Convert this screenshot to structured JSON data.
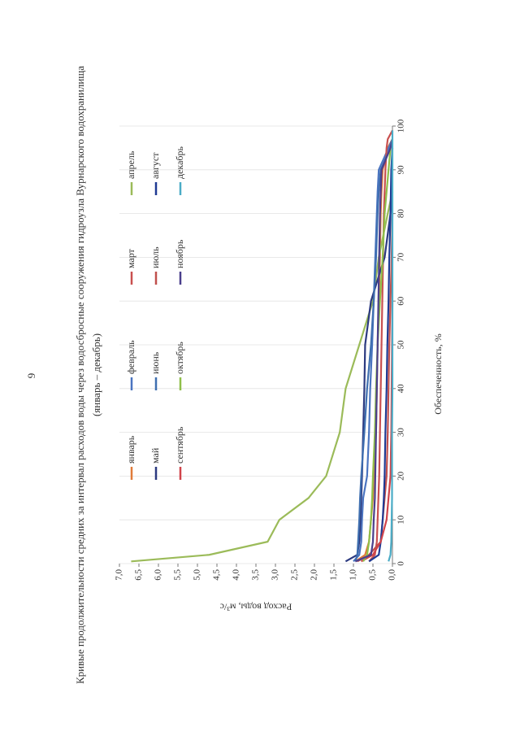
{
  "page_number": "9",
  "chart_data": {
    "type": "line",
    "title": "Кривые продолжительности средних за интервал расходов воды через водосбросные сооружения гидроузла Вурнарского водохранилища",
    "subtitle": "(январь – декабрь)",
    "x_label": "Обеспеченность, %",
    "y_label": "Расход воды, м³/с",
    "x": [
      0.5,
      2,
      5,
      10,
      15,
      20,
      30,
      40,
      50,
      60,
      70,
      80,
      85,
      90,
      95,
      97,
      99
    ],
    "xlim": [
      0,
      100
    ],
    "xticks": [
      0,
      10,
      20,
      30,
      40,
      50,
      60,
      70,
      80,
      90,
      100
    ],
    "ylim": [
      0,
      7
    ],
    "yticks": [
      {
        "value": 0,
        "label": "0,0"
      },
      {
        "value": 0.5,
        "label": "0,5"
      },
      {
        "value": 1,
        "label": "1,0"
      },
      {
        "value": 1.5,
        "label": "1,5"
      },
      {
        "value": 2,
        "label": "2,0"
      },
      {
        "value": 2.5,
        "label": "2,5"
      },
      {
        "value": 3,
        "label": "3,0"
      },
      {
        "value": 3.5,
        "label": "3,5"
      },
      {
        "value": 4,
        "label": "4,0"
      },
      {
        "value": 4.5,
        "label": "4,5"
      },
      {
        "value": 5,
        "label": "5,0"
      },
      {
        "value": 5.5,
        "label": "5,5"
      },
      {
        "value": 6,
        "label": "6,0"
      },
      {
        "value": 6.5,
        "label": "6,5"
      },
      {
        "value": 7,
        "label": "7,0"
      }
    ],
    "grid": true,
    "series": [
      {
        "name": "январь",
        "color": "#e07b39",
        "values": [
          0.95,
          0.7,
          0.6,
          0.55,
          0.5,
          0.48,
          0.42,
          0.4,
          0.38,
          0.35,
          0.32,
          0.3,
          0.28,
          0.25,
          0.12,
          0,
          null
        ]
      },
      {
        "name": "февраль",
        "color": "#4a74c0",
        "values": [
          1.0,
          0.85,
          0.8,
          0.78,
          0.75,
          0.65,
          0.6,
          0.57,
          0.52,
          0.48,
          0.44,
          0.4,
          0.38,
          0.35,
          0.1,
          0,
          null
        ]
      },
      {
        "name": "март",
        "color": "#c9504f",
        "values": [
          0.6,
          0.45,
          0.4,
          0.38,
          0.36,
          0.34,
          0.32,
          0.3,
          0.28,
          0.26,
          0.24,
          0.22,
          0.2,
          0.18,
          0.15,
          0.12,
          0
        ]
      },
      {
        "name": "апрель",
        "color": "#9bbb59",
        "values": [
          6.7,
          4.7,
          3.2,
          2.9,
          2.15,
          1.7,
          1.35,
          1.2,
          0.85,
          0.5,
          0.35,
          0.12,
          0,
          null,
          null,
          null,
          null
        ]
      },
      {
        "name": "май",
        "color": "#2c3a80",
        "values": [
          1.2,
          0.9,
          0.85,
          0.82,
          0.8,
          0.78,
          0.75,
          0.72,
          0.7,
          0.55,
          0.2,
          0.05,
          0,
          null,
          null,
          null,
          null
        ]
      },
      {
        "name": "июнь",
        "color": "#3f6fb0",
        "values": [
          0.95,
          0.9,
          0.88,
          0.85,
          0.83,
          0.8,
          0.72,
          0.65,
          0.55,
          0.48,
          0.42,
          0.38,
          0.35,
          0.3,
          0.05,
          0,
          null
        ]
      },
      {
        "name": "июль",
        "color": "#c0504d",
        "values": [
          0.9,
          0.6,
          0.3,
          0.25,
          0.2,
          0.15,
          0.12,
          0.1,
          0.08,
          0.05,
          0.02,
          0,
          null,
          null,
          null,
          null,
          null
        ]
      },
      {
        "name": "август",
        "color": "#1f3a93",
        "values": [
          0.6,
          0.35,
          0.3,
          0.25,
          0.22,
          0.2,
          0.18,
          0.15,
          0.13,
          0.1,
          0.08,
          0.05,
          0.04,
          0.03,
          0,
          null,
          null
        ]
      },
      {
        "name": "сентябрь",
        "color": "#d0434a",
        "values": [
          0.8,
          0.5,
          0.3,
          0.15,
          0.1,
          0.05,
          0.03,
          0.02,
          0.01,
          0,
          null,
          null,
          null,
          null,
          null,
          null,
          null
        ]
      },
      {
        "name": "октябрь",
        "color": "#8fbf4a",
        "values": [
          0.75,
          0.65,
          0.6,
          0.55,
          0.52,
          0.5,
          0.45,
          0.42,
          0.38,
          0.32,
          0.25,
          0.2,
          0.15,
          0.1,
          0.05,
          0,
          null
        ]
      },
      {
        "name": "ноябрь",
        "color": "#4a3f8c",
        "values": [
          0.95,
          0.55,
          0.5,
          0.48,
          0.45,
          0.44,
          0.42,
          0.4,
          0.38,
          0.36,
          0.34,
          0.32,
          0.3,
          0.28,
          0.05,
          0,
          null
        ]
      },
      {
        "name": "декабрь",
        "color": "#4bacc6",
        "values": [
          0.1,
          0.05,
          0.03,
          0.02,
          0.01,
          0.01,
          0.01,
          0,
          0,
          0,
          0,
          0,
          0,
          0,
          0,
          0,
          0
        ]
      }
    ]
  }
}
